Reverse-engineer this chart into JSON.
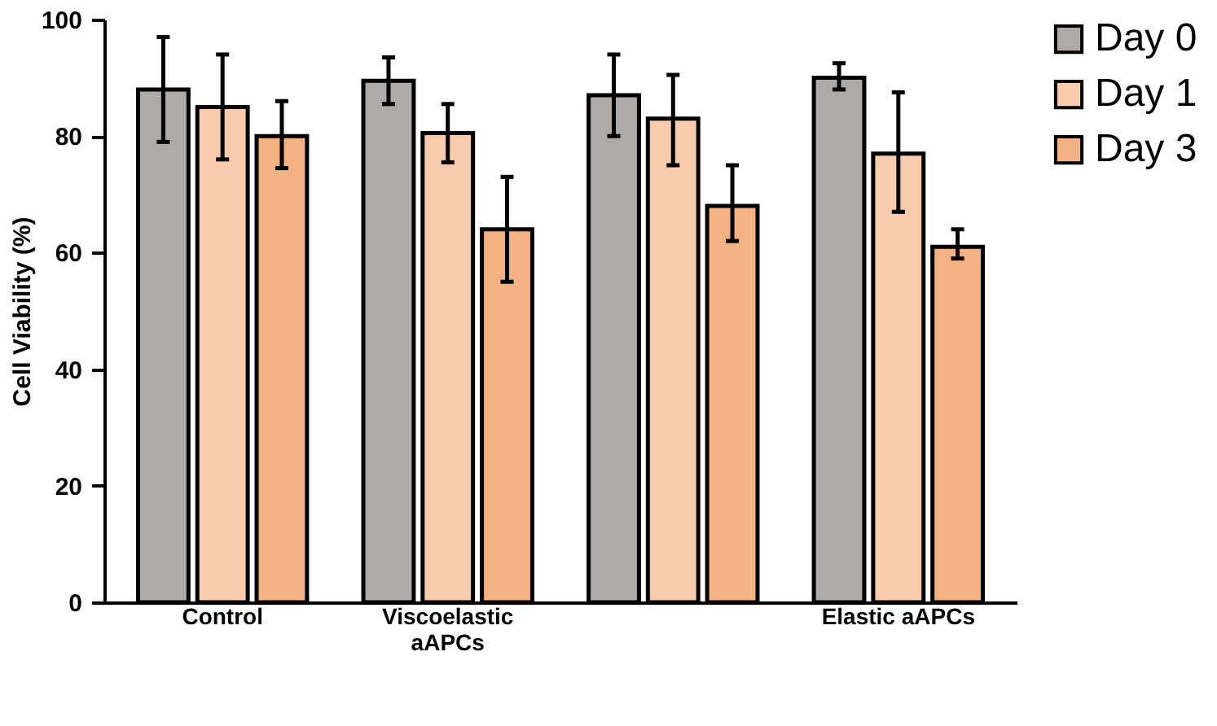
{
  "chart_data": {
    "type": "bar",
    "ylabel": "Cell Viability (%)",
    "categories": [
      "Control",
      "Viscoelastic aAPCs",
      null,
      "Elastic aAPCs"
    ],
    "series": [
      {
        "name": "Day 0",
        "color": "#aeaaaa",
        "values": [
          88,
          89.5,
          87,
          90
        ],
        "errors": [
          [
            79,
            97
          ],
          [
            85.5,
            93.5
          ],
          [
            80,
            94
          ],
          [
            88,
            92.5
          ]
        ]
      },
      {
        "name": "Day 1",
        "color": "#f8cbad",
        "values": [
          85,
          80.5,
          83,
          77
        ],
        "errors": [
          [
            76,
            94
          ],
          [
            75.5,
            85.5
          ],
          [
            75,
            90.5
          ],
          [
            67,
            87.5
          ]
        ]
      },
      {
        "name": "Day 3",
        "color": "#f4b183",
        "values": [
          80,
          64,
          68,
          61
        ],
        "errors": [
          [
            74.5,
            86
          ],
          [
            55,
            73
          ],
          [
            62,
            75
          ],
          [
            59,
            64
          ]
        ]
      }
    ],
    "ylim": [
      0,
      100
    ],
    "yticks": [
      0,
      20,
      40,
      60,
      80,
      100
    ],
    "grid": false,
    "legend": "top right"
  }
}
